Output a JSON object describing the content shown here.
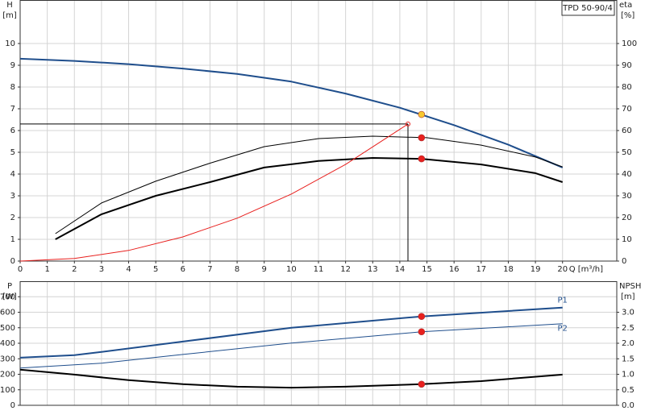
{
  "chart_data": [
    {
      "type": "line",
      "title": "TPD 50-90/4",
      "ylabel": "H",
      "yunit": "[m]",
      "y2label": "eta",
      "y2unit": "[%]",
      "xlabel": "Q [m³/h]",
      "xlim": [
        0,
        22
      ],
      "xticks": [
        0,
        1,
        2,
        3,
        4,
        5,
        6,
        7,
        8,
        9,
        10,
        11,
        12,
        13,
        14,
        15,
        16,
        17,
        18,
        19,
        20
      ],
      "ylim": [
        0,
        12
      ],
      "yticks": [
        0,
        1,
        2,
        3,
        4,
        5,
        6,
        7,
        8,
        9,
        10
      ],
      "y2lim": [
        0,
        120
      ],
      "y2ticks": [
        0,
        10,
        20,
        30,
        40,
        50,
        60,
        70,
        80,
        90,
        100
      ],
      "grid": true,
      "series": [
        {
          "color": "#1f4e8c",
          "line_width": 2,
          "x": [
            0,
            2,
            4,
            6,
            8,
            10,
            12,
            14,
            16,
            18,
            20
          ],
          "values": [
            9.3,
            9.2,
            9.05,
            8.85,
            8.6,
            8.25,
            7.7,
            7.05,
            6.25,
            5.35,
            4.3
          ]
        },
        {
          "color": "#000000",
          "line_width": 1,
          "axis": "y2",
          "x": [
            1.3,
            3,
            5,
            7,
            9,
            11,
            13,
            15,
            17,
            19,
            20
          ],
          "values": [
            12.6,
            26.7,
            36.7,
            45,
            52.6,
            56.3,
            57.4,
            56.7,
            53.3,
            47.8,
            43.3
          ]
        },
        {
          "color": "#000000",
          "line_width": 2,
          "axis": "y2",
          "x": [
            1.3,
            3,
            5,
            7,
            9,
            11,
            13,
            14.8,
            17,
            19,
            20
          ],
          "values": [
            10,
            21.5,
            30,
            36.3,
            43,
            46,
            47.4,
            47,
            44.4,
            40.4,
            36.3
          ]
        },
        {
          "color": "#e8201e",
          "line_width": 1,
          "x": [
            0,
            2,
            4,
            6,
            8,
            10,
            12,
            14.3
          ],
          "values": [
            0,
            0.12,
            0.49,
            1.11,
            1.97,
            3.08,
            4.44,
            6.3
          ]
        }
      ],
      "duty_lines": {
        "x": 14.3,
        "y": 6.3,
        "color": "#000000"
      },
      "points": [
        {
          "x": 14.8,
          "y": 6.74,
          "color": "#f7c830"
        },
        {
          "x": 14.8,
          "y": 56.7,
          "axis": "y2",
          "color": "#e8201e"
        },
        {
          "x": 14.8,
          "y": 47,
          "axis": "y2",
          "color": "#e8201e"
        }
      ]
    },
    {
      "type": "line",
      "ylabel": "P",
      "yunit": "[W]",
      "y2label": "NPSH",
      "y2unit": "[m]",
      "xlim": [
        0,
        22
      ],
      "ylim": [
        0,
        800
      ],
      "yticks": [
        0,
        100,
        200,
        300,
        400,
        500,
        600,
        700
      ],
      "y2lim": [
        0,
        4
      ],
      "y2ticks": [
        {
          "value": 0,
          "label": "0.0"
        },
        0.5,
        {
          "value": 1,
          "label": "1.0"
        },
        1.5,
        {
          "value": 2,
          "label": "2.0"
        },
        2.5,
        {
          "value": 3,
          "label": "3.0"
        }
      ],
      "grid": true,
      "series": [
        {
          "name": "P1",
          "color": "#1f4e8c",
          "line_width": 2,
          "x": [
            0,
            2,
            3,
            6,
            10,
            14.8,
            20
          ],
          "values": [
            307,
            323,
            344,
            411,
            500,
            573,
            630
          ]
        },
        {
          "name": "P2",
          "color": "#1f4e8c",
          "line_width": 1,
          "x": [
            0,
            3,
            6,
            10,
            14.8,
            20
          ],
          "values": [
            240,
            271,
            328,
            401,
            474,
            526
          ]
        },
        {
          "color": "#000000",
          "line_width": 2,
          "axis": "y2",
          "x": [
            0,
            2,
            4,
            6,
            8,
            10,
            12,
            14.8,
            17,
            20
          ],
          "values": [
            1.15,
            0.99,
            0.81,
            0.68,
            0.6,
            0.57,
            0.6,
            0.68,
            0.78,
            0.99
          ]
        }
      ],
      "points": [
        {
          "x": 14.8,
          "y": 573,
          "color": "#e8201e"
        },
        {
          "x": 14.8,
          "y": 474,
          "color": "#e8201e"
        },
        {
          "x": 14.8,
          "y": 0.68,
          "axis": "y2",
          "color": "#e8201e"
        }
      ]
    }
  ]
}
